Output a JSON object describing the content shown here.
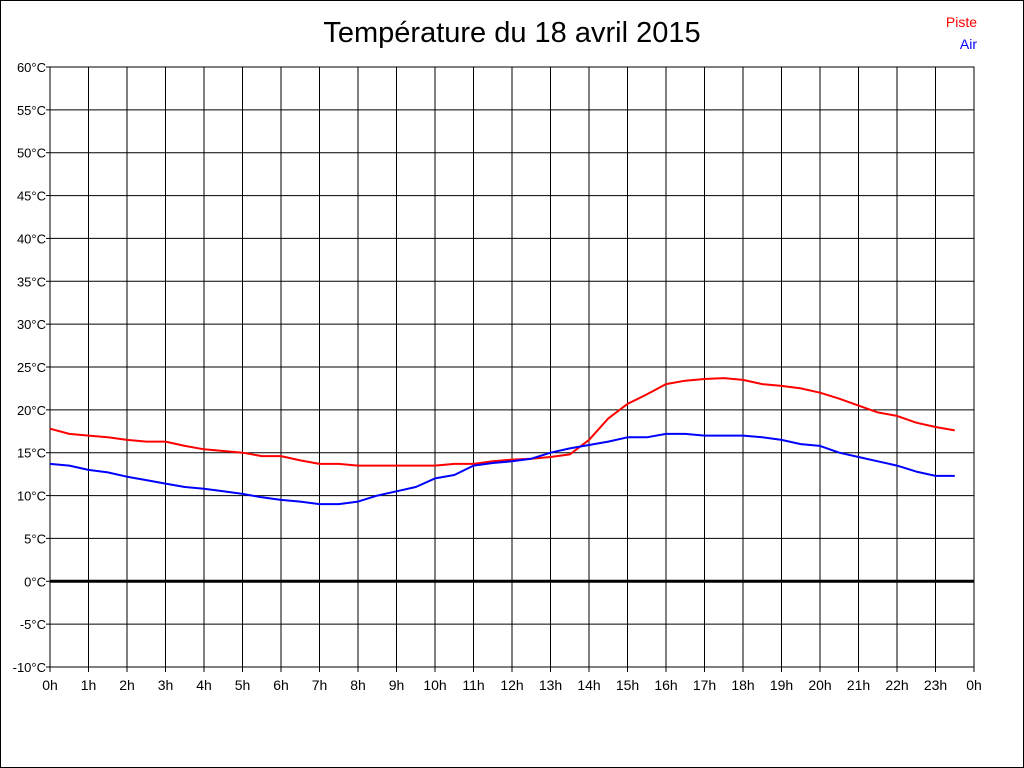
{
  "chart_data": {
    "type": "line",
    "title": "Température du 18 avril 2015",
    "xlabel": "",
    "ylabel": "",
    "x_ticks": [
      "0h",
      "1h",
      "2h",
      "3h",
      "4h",
      "5h",
      "6h",
      "7h",
      "8h",
      "9h",
      "10h",
      "11h",
      "12h",
      "13h",
      "14h",
      "15h",
      "16h",
      "17h",
      "18h",
      "19h",
      "20h",
      "21h",
      "22h",
      "23h",
      "0h"
    ],
    "y_ticks": [
      "60°C",
      "55°C",
      "50°C",
      "45°C",
      "40°C",
      "35°C",
      "30°C",
      "25°C",
      "20°C",
      "15°C",
      "10°C",
      "5°C",
      "0°C",
      "-5°C",
      "-10°C"
    ],
    "xlim": [
      0,
      24
    ],
    "ylim": [
      -10,
      60
    ],
    "grid": true,
    "legend_position": "top-right",
    "series": [
      {
        "name": "Piste",
        "color": "#ff0000",
        "x": [
          0,
          0.5,
          1,
          1.5,
          2,
          2.5,
          3,
          3.5,
          4,
          4.5,
          5,
          5.5,
          6,
          6.5,
          7,
          7.5,
          8,
          8.5,
          9,
          9.5,
          10,
          10.5,
          11,
          11.5,
          12,
          12.5,
          13,
          13.5,
          14,
          14.5,
          15,
          15.5,
          16,
          16.5,
          17,
          17.5,
          18,
          18.5,
          19,
          19.5,
          20,
          20.5,
          21,
          21.5,
          22,
          22.5,
          23,
          23.5
        ],
        "values": [
          17.8,
          17.2,
          17.0,
          16.8,
          16.5,
          16.3,
          16.3,
          15.8,
          15.4,
          15.2,
          15.0,
          14.6,
          14.6,
          14.1,
          13.7,
          13.7,
          13.5,
          13.5,
          13.5,
          13.5,
          13.5,
          13.7,
          13.7,
          14.0,
          14.2,
          14.3,
          14.5,
          14.8,
          16.5,
          19.0,
          20.7,
          21.8,
          23.0,
          23.4,
          23.6,
          23.7,
          23.5,
          23.0,
          22.8,
          22.5,
          22.0,
          21.3,
          20.5,
          19.7,
          19.3,
          18.5,
          18.0,
          17.6
        ]
      },
      {
        "name": "Air",
        "color": "#0000ff",
        "x": [
          0,
          0.5,
          1,
          1.5,
          2,
          2.5,
          3,
          3.5,
          4,
          4.5,
          5,
          5.5,
          6,
          6.5,
          7,
          7.5,
          8,
          8.5,
          9,
          9.5,
          10,
          10.5,
          11,
          11.5,
          12,
          12.5,
          13,
          13.5,
          14,
          14.5,
          15,
          15.5,
          16,
          16.5,
          17,
          17.5,
          18,
          18.5,
          19,
          19.5,
          20,
          20.5,
          21,
          21.5,
          22,
          22.5,
          23,
          23.5
        ],
        "values": [
          13.7,
          13.5,
          13.0,
          12.7,
          12.2,
          11.8,
          11.4,
          11.0,
          10.8,
          10.5,
          10.2,
          9.8,
          9.5,
          9.3,
          9.0,
          9.0,
          9.3,
          10.0,
          10.5,
          11.0,
          12.0,
          12.4,
          13.5,
          13.8,
          14.0,
          14.3,
          15.0,
          15.5,
          15.9,
          16.3,
          16.8,
          16.8,
          17.2,
          17.2,
          17.0,
          17.0,
          17.0,
          16.8,
          16.5,
          16.0,
          15.8,
          15.0,
          14.5,
          14.0,
          13.5,
          12.8,
          12.3,
          12.3
        ]
      }
    ]
  }
}
